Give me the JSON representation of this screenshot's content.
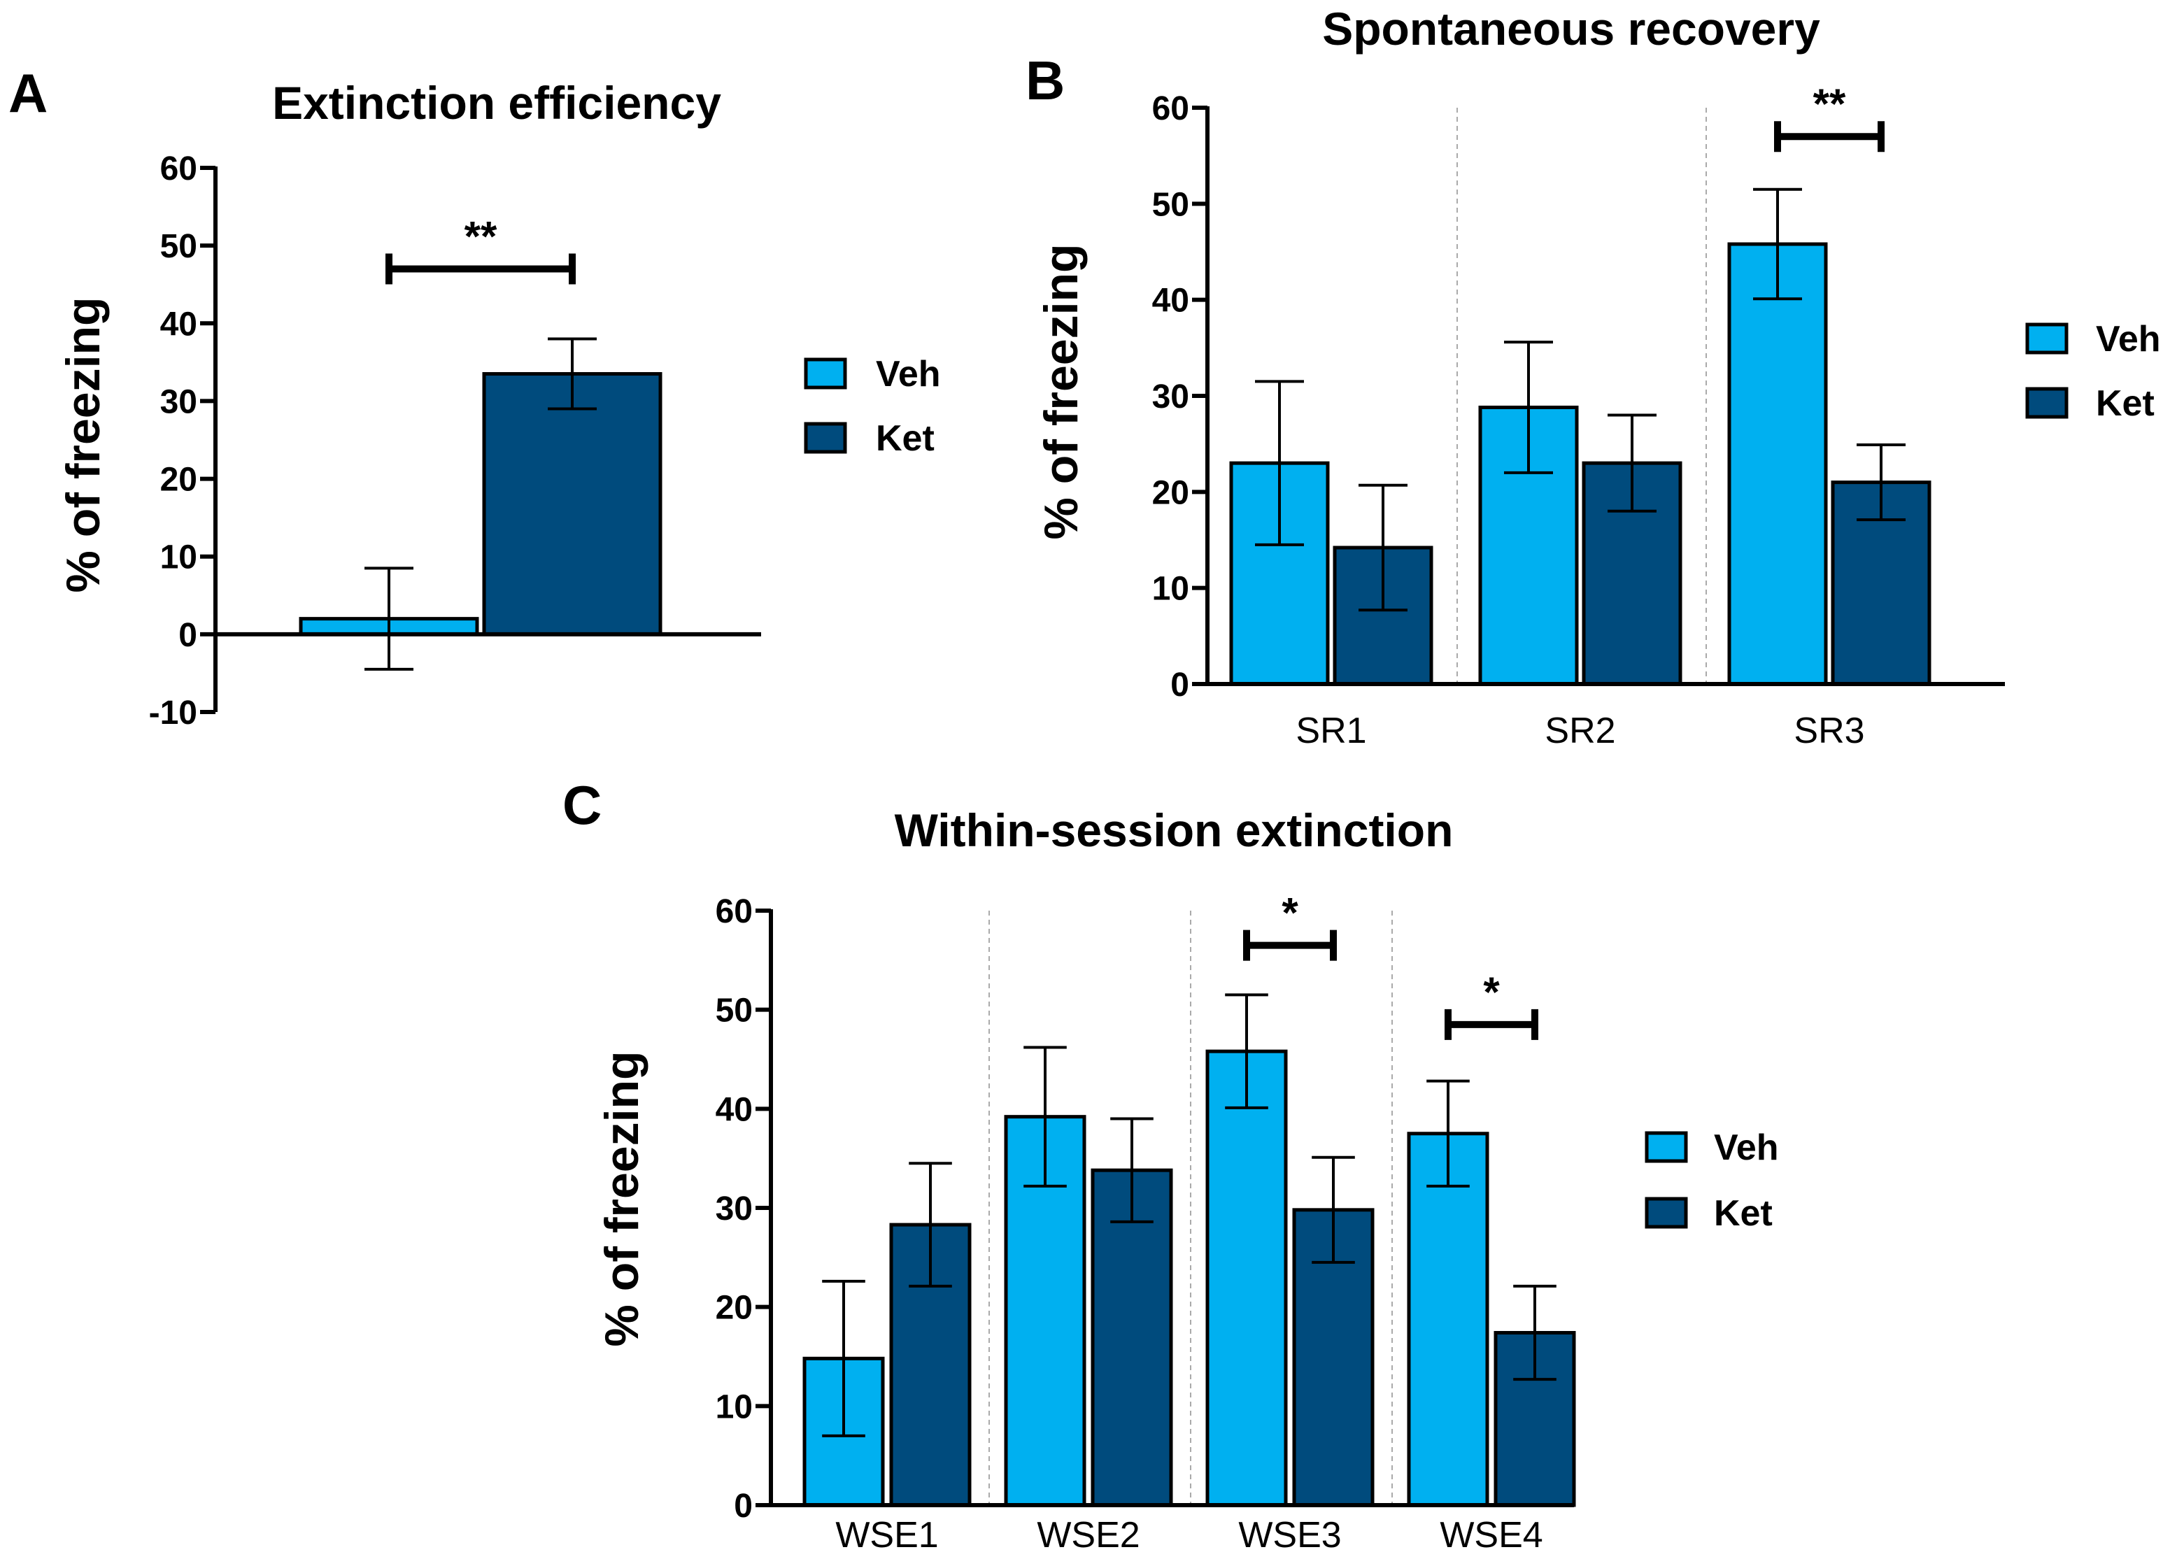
{
  "colors": {
    "veh": "#00b0f0",
    "ket": "#004b7d",
    "axis": "#000000",
    "divider": "#aaaaaa"
  },
  "chart_data": [
    {
      "panel": "A",
      "type": "bar",
      "title": "Extinction efficiency",
      "ylabel": "% of freezing",
      "xlabel": "",
      "ylim": [
        -10,
        60
      ],
      "yticks": [
        -10,
        0,
        10,
        20,
        30,
        40,
        50,
        60
      ],
      "categories": [
        ""
      ],
      "series": [
        {
          "name": "Veh",
          "values": [
            2
          ],
          "errors": [
            6.5
          ]
        },
        {
          "name": "Ket",
          "values": [
            33.5
          ],
          "errors": [
            4.5
          ]
        }
      ],
      "significance": [
        {
          "category": 0,
          "label": "**",
          "y": 47
        }
      ],
      "legend": [
        "Veh",
        "Ket"
      ]
    },
    {
      "panel": "B",
      "type": "bar",
      "title": "Spontaneous recovery",
      "ylabel": "% of freezing",
      "xlabel": "",
      "ylim": [
        0,
        60
      ],
      "yticks": [
        0,
        10,
        20,
        30,
        40,
        50,
        60
      ],
      "categories": [
        "SR1",
        "SR2",
        "SR3"
      ],
      "series": [
        {
          "name": "Veh",
          "values": [
            23,
            28.8,
            45.8
          ],
          "errors": [
            8.5,
            6.8,
            5.7
          ]
        },
        {
          "name": "Ket",
          "values": [
            14.2,
            23,
            21
          ],
          "errors": [
            6.5,
            5,
            3.9
          ]
        }
      ],
      "significance": [
        {
          "category": 2,
          "label": "**",
          "y": 57
        }
      ],
      "legend": [
        "Veh",
        "Ket"
      ]
    },
    {
      "panel": "C",
      "type": "bar",
      "title": "Within-session extinction",
      "ylabel": "% of freezing",
      "xlabel": "",
      "ylim": [
        0,
        60
      ],
      "yticks": [
        0,
        10,
        20,
        30,
        40,
        50,
        60
      ],
      "categories": [
        "WSE1",
        "WSE2",
        "WSE3",
        "WSE4"
      ],
      "series": [
        {
          "name": "Veh",
          "values": [
            14.8,
            39.2,
            45.8,
            37.5
          ],
          "errors": [
            7.8,
            7,
            5.7,
            5.3
          ]
        },
        {
          "name": "Ket",
          "values": [
            28.3,
            33.8,
            29.8,
            17.4
          ],
          "errors": [
            6.2,
            5.2,
            5.3,
            4.7
          ]
        }
      ],
      "significance": [
        {
          "category": 2,
          "label": "*",
          "y": 56.5
        },
        {
          "category": 3,
          "label": "*",
          "y": 48.5
        }
      ],
      "legend": [
        "Veh",
        "Ket"
      ]
    }
  ]
}
